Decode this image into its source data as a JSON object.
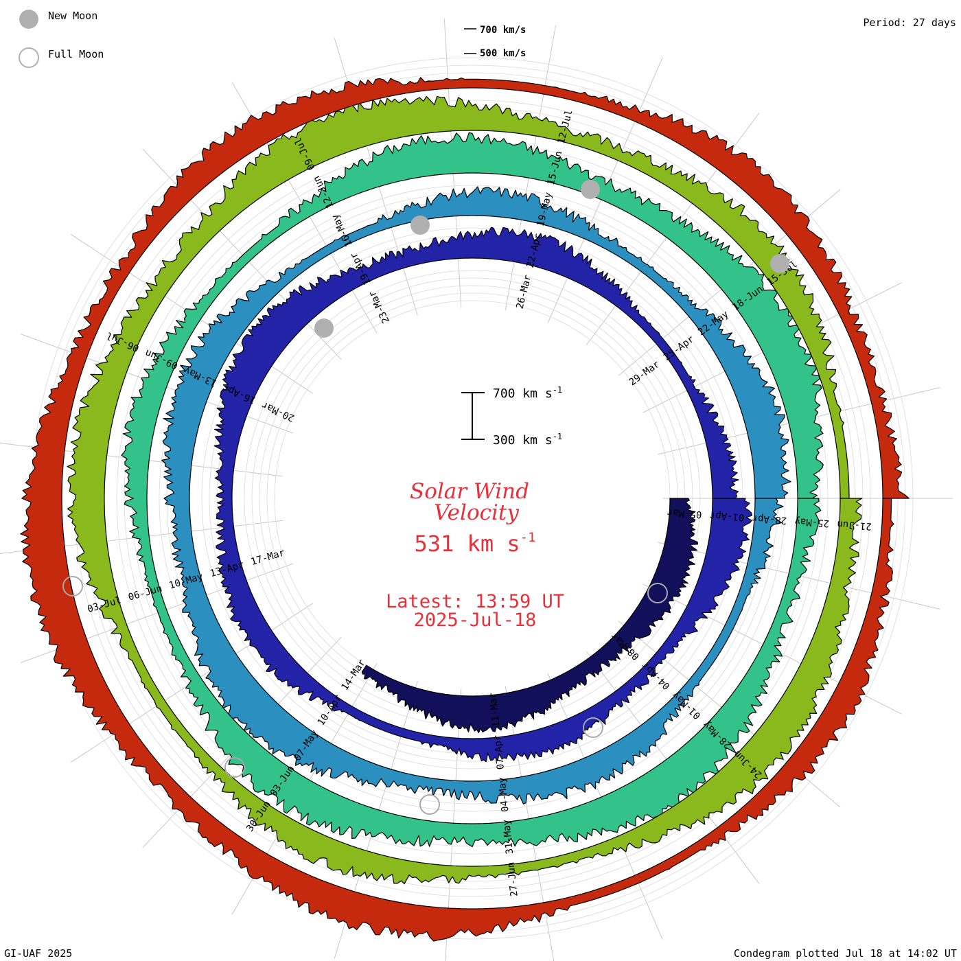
{
  "chart_data": {
    "type": "spiral-area",
    "title": "Solar Wind Velocity",
    "current_value": "531",
    "current_unit": "km s",
    "unit_exponent": "-1",
    "latest_label": "Latest: 13:59 UT",
    "latest_date": "2025-Jul-18",
    "period_label": "Period: 27 days",
    "legend": {
      "new_moon": "New Moon",
      "full_moon": "Full Moon"
    },
    "scale_bar": {
      "top_value": "700 km s",
      "bottom_value": "300 km s",
      "exponent": "-1",
      "min_kms": 300,
      "max_kms": 700
    },
    "outer_scale": {
      "upper": "700 km/s",
      "lower": "500 km/s"
    },
    "credit": "GI-UAF 2025",
    "plotted": "Condegram plotted Jul 18 at 14:02 UT",
    "rings": [
      {
        "name": "ring-1",
        "color": "#12105a",
        "span": 0.34,
        "base_speed": 430,
        "dates": [
          {
            "label": "05-Mar",
            "t": 0.0
          },
          {
            "label": "08-Mar",
            "t": 0.111
          },
          {
            "label": "11-Mar",
            "t": 0.222
          },
          {
            "label": "14-Mar",
            "t": 0.333
          },
          {
            "label": "17-Mar",
            "t": 0.444
          },
          {
            "label": "20-Mar",
            "t": 0.556
          },
          {
            "label": "23-Mar",
            "t": 0.667
          },
          {
            "label": "26-Mar",
            "t": 0.778
          },
          {
            "label": "29-Mar",
            "t": 0.889
          }
        ]
      },
      {
        "name": "ring-2",
        "color": "#2323a8",
        "span": 1.0,
        "base_speed": 470,
        "dates": [
          {
            "label": "01-Apr",
            "t": 0.0
          },
          {
            "label": "04-Apr",
            "t": 0.111
          },
          {
            "label": "07-Apr",
            "t": 0.222
          },
          {
            "label": "10-Apr",
            "t": 0.333
          },
          {
            "label": "13-Apr",
            "t": 0.444
          },
          {
            "label": "16-Apr",
            "t": 0.556
          },
          {
            "label": "19-Apr",
            "t": 0.667
          },
          {
            "label": "22-Apr",
            "t": 0.778
          },
          {
            "label": "25-Apr",
            "t": 0.889
          }
        ]
      },
      {
        "name": "ring-3",
        "color": "#2b8fc0",
        "span": 1.0,
        "base_speed": 520,
        "dates": [
          {
            "label": "28-Apr",
            "t": 0.0
          },
          {
            "label": "01-May",
            "t": 0.111
          },
          {
            "label": "04-May",
            "t": 0.222
          },
          {
            "label": "07-May",
            "t": 0.333
          },
          {
            "label": "10-May",
            "t": 0.444
          },
          {
            "label": "13-May",
            "t": 0.556
          },
          {
            "label": "16-May",
            "t": 0.667
          },
          {
            "label": "19-May",
            "t": 0.778
          },
          {
            "label": "22-May",
            "t": 0.889
          }
        ]
      },
      {
        "name": "ring-4",
        "color": "#33c28a",
        "span": 1.0,
        "base_speed": 540,
        "dates": [
          {
            "label": "25-May",
            "t": 0.0
          },
          {
            "label": "28-May",
            "t": 0.111
          },
          {
            "label": "31-May",
            "t": 0.222
          },
          {
            "label": "03-Jun",
            "t": 0.333
          },
          {
            "label": "06-Jun",
            "t": 0.444
          },
          {
            "label": "09-Jun",
            "t": 0.556
          },
          {
            "label": "12-Jun",
            "t": 0.667
          },
          {
            "label": "15-Jun",
            "t": 0.778
          },
          {
            "label": "18-Jun",
            "t": 0.889
          }
        ]
      },
      {
        "name": "ring-5",
        "color": "#8ab91d",
        "span": 1.0,
        "base_speed": 530,
        "dates": [
          {
            "label": "21-Jun",
            "t": 0.0
          },
          {
            "label": "24-Jun",
            "t": 0.111
          },
          {
            "label": "27-Jun",
            "t": 0.222
          },
          {
            "label": "30-Jun",
            "t": 0.333
          },
          {
            "label": "03-Jul",
            "t": 0.444
          },
          {
            "label": "06-Jul",
            "t": 0.556
          },
          {
            "label": "09-Jul",
            "t": 0.667
          },
          {
            "label": "12-Jul",
            "t": 0.778
          },
          {
            "label": "15-Jul",
            "t": 0.889
          }
        ]
      },
      {
        "name": "ring-6",
        "color": "#c62a0e",
        "span": 1.0,
        "base_speed": 500,
        "dates": []
      }
    ],
    "new_moons": [
      {
        "label": "29-Mar"
      },
      {
        "label": "28-Apr"
      },
      {
        "label": "27-May"
      },
      {
        "label": "25-Jun"
      }
    ],
    "full_moons": [
      {
        "label": "13-Mar"
      },
      {
        "label": "13-Apr"
      },
      {
        "label": "12-May"
      },
      {
        "label": "11-Jun"
      },
      {
        "label": "10-Jul"
      }
    ]
  }
}
